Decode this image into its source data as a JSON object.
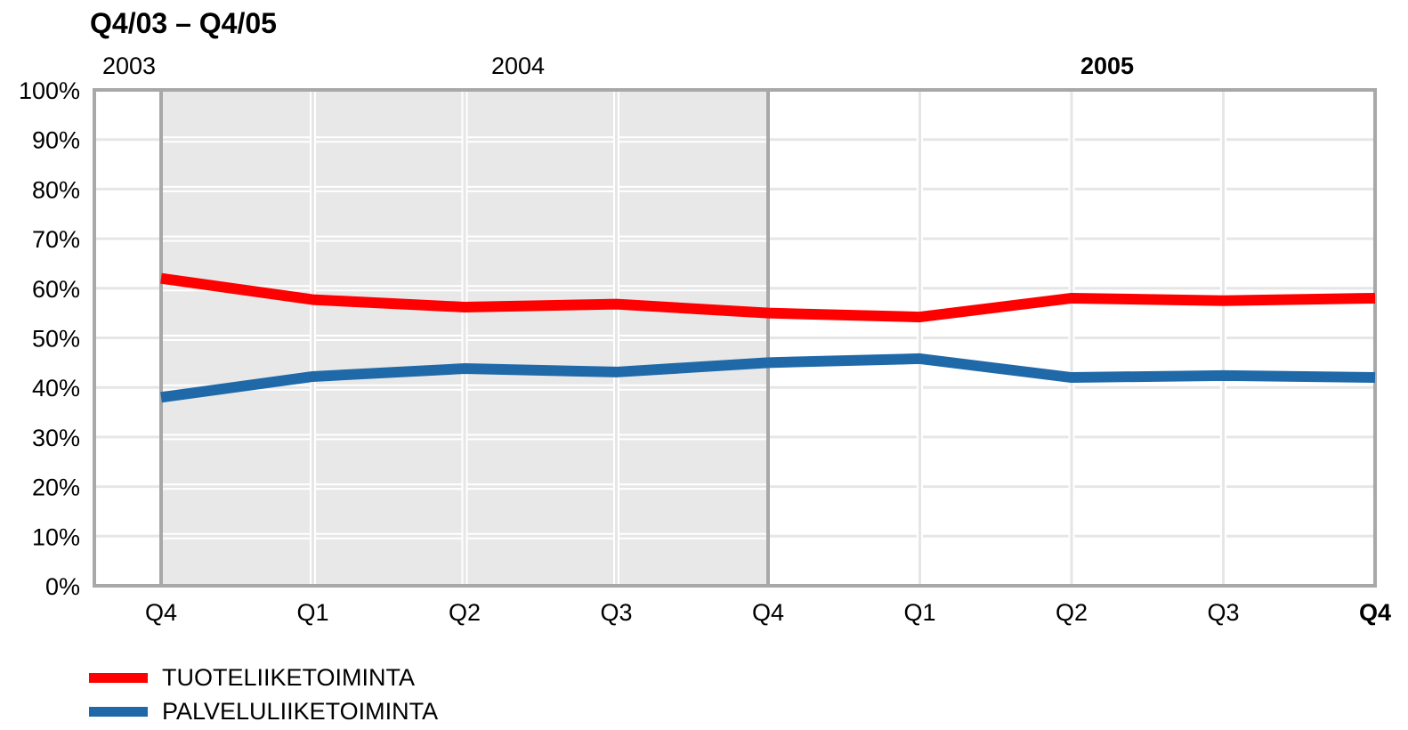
{
  "chart_data": {
    "type": "line",
    "title": "Q4/03 – Q4/05",
    "year_labels": [
      {
        "label": "2003",
        "bold": false,
        "at_category": 0
      },
      {
        "label": "2004",
        "bold": false,
        "at_category": 2
      },
      {
        "label": "2005",
        "bold": true,
        "at_category": 6
      }
    ],
    "categories": [
      "Q4",
      "Q1",
      "Q2",
      "Q3",
      "Q4",
      "Q1",
      "Q2",
      "Q3",
      "Q4"
    ],
    "bold_categories": [
      8
    ],
    "yticks": [
      "0%",
      "10%",
      "20%",
      "30%",
      "40%",
      "50%",
      "60%",
      "70%",
      "80%",
      "90%",
      "100%"
    ],
    "ylim": [
      0,
      100
    ],
    "grid": true,
    "shaded_categories": [
      0,
      4
    ],
    "series": [
      {
        "name": "TUOTELIIKETOIMINTA",
        "color": "#ff0000",
        "values": [
          62,
          57.7,
          56.2,
          56.8,
          55,
          54.2,
          58,
          57.5,
          58
        ]
      },
      {
        "name": "PALVELULIIKETOIMINTA",
        "color": "#1f69a9",
        "values": [
          38,
          42.2,
          43.8,
          43.1,
          45,
          45.8,
          42,
          42.4,
          42
        ]
      }
    ],
    "legend_position": "bottom-left"
  }
}
